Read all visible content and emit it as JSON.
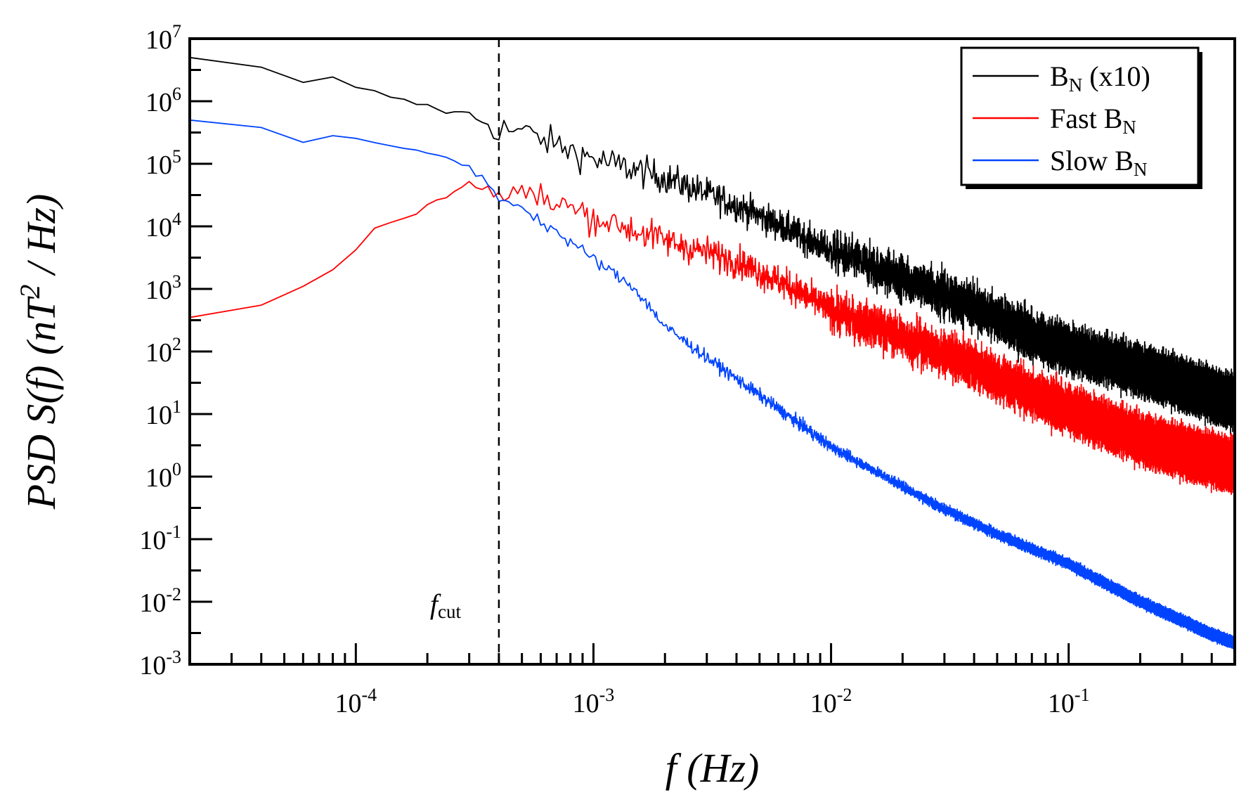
{
  "chart_data": {
    "type": "line",
    "xlabel_prefix": "f",
    "xlabel_unit": "(Hz)",
    "ylabel_parts": {
      "a": "PSD S(f) (nT",
      "sup": "2",
      "b": " / Hz)"
    },
    "xscale": "log",
    "yscale": "log",
    "xlim": [
      2e-05,
      0.5
    ],
    "ylim": [
      0.001,
      10000000
    ],
    "x_ticks": [
      {
        "base": "10",
        "exp": "-4",
        "value": 0.0001
      },
      {
        "base": "10",
        "exp": "-3",
        "value": 0.001
      },
      {
        "base": "10",
        "exp": "-2",
        "value": 0.01
      },
      {
        "base": "10",
        "exp": "-1",
        "value": 0.1
      }
    ],
    "y_ticks": [
      {
        "base": "10",
        "exp": "7",
        "value": 10000000
      },
      {
        "base": "10",
        "exp": "6",
        "value": 1000000
      },
      {
        "base": "10",
        "exp": "5",
        "value": 100000
      },
      {
        "base": "10",
        "exp": "4",
        "value": 10000
      },
      {
        "base": "10",
        "exp": "3",
        "value": 1000
      },
      {
        "base": "10",
        "exp": "2",
        "value": 100
      },
      {
        "base": "10",
        "exp": "1",
        "value": 10
      },
      {
        "base": "10",
        "exp": "0",
        "value": 1
      },
      {
        "base": "10",
        "exp": "-1",
        "value": 0.1
      },
      {
        "base": "10",
        "exp": "-2",
        "value": 0.01
      },
      {
        "base": "10",
        "exp": "-3",
        "value": 0.001
      }
    ],
    "legend_position": "top-right",
    "annotation": {
      "main": "f",
      "sub": "cut",
      "x": 0.0004
    },
    "series": [
      {
        "id": "bn",
        "name_main": "B",
        "name_sub": "N",
        "name_suffix": "  (x10)",
        "color": "#000000",
        "noise": [
          0.05,
          0.25,
          0.35
        ],
        "x": [
          2e-05,
          4e-05,
          6e-05,
          8e-05,
          0.0001,
          0.00013,
          0.00016,
          0.0002,
          0.00025,
          0.0003,
          0.00035,
          0.0004,
          0.0005,
          0.0007,
          0.001,
          0.002,
          0.004,
          0.007,
          0.01,
          0.02,
          0.04,
          0.07,
          0.1,
          0.2,
          0.3,
          0.5
        ],
        "y": [
          5000000,
          3500000,
          2000000,
          2300000,
          1600000,
          1300000,
          1000000,
          850000,
          650000,
          650000,
          500000,
          360000,
          330000,
          200000,
          120000,
          60000,
          22000,
          8000,
          4000,
          1500,
          500,
          180,
          110,
          50,
          30,
          15
        ]
      },
      {
        "id": "fast",
        "name_main": "Fast B",
        "name_sub": "N",
        "name_suffix": "",
        "color": "#ff0000",
        "noise": [
          0.05,
          0.25,
          0.35
        ],
        "x": [
          2e-05,
          4e-05,
          6e-05,
          8e-05,
          0.0001,
          0.00013,
          0.00016,
          0.0002,
          0.00025,
          0.0003,
          0.00035,
          0.0004,
          0.0005,
          0.0007,
          0.001,
          0.002,
          0.004,
          0.007,
          0.01,
          0.02,
          0.04,
          0.07,
          0.1,
          0.2,
          0.3,
          0.5
        ],
        "y": [
          350,
          550,
          1100,
          2300,
          4000,
          12000,
          13000,
          22000,
          35000,
          48000,
          42000,
          33000,
          33000,
          24000,
          14000,
          6000,
          2800,
          1000,
          450,
          170,
          60,
          20,
          12,
          4,
          2.5,
          1.5
        ]
      },
      {
        "id": "slow",
        "name_main": "Slow B",
        "name_sub": "N",
        "name_suffix": "",
        "color": "#0044ff",
        "noise": [
          0.03,
          0.1,
          0.08
        ],
        "x": [
          2e-05,
          4e-05,
          6e-05,
          8e-05,
          0.0001,
          0.00013,
          0.00016,
          0.0002,
          0.00025,
          0.0003,
          0.00035,
          0.0004,
          0.0005,
          0.0007,
          0.001,
          0.0015,
          0.002,
          0.003,
          0.005,
          0.007,
          0.01,
          0.02,
          0.03,
          0.05,
          0.1,
          0.2,
          0.3,
          0.4,
          0.5
        ],
        "y": [
          500000,
          380000,
          220000,
          280000,
          240000,
          200000,
          180000,
          150000,
          120000,
          90000,
          50000,
          30000,
          20000,
          8000,
          3000,
          1000,
          250,
          80,
          20,
          8,
          3,
          0.7,
          0.3,
          0.12,
          0.04,
          0.01,
          0.005,
          0.003,
          0.0022
        ]
      }
    ]
  }
}
